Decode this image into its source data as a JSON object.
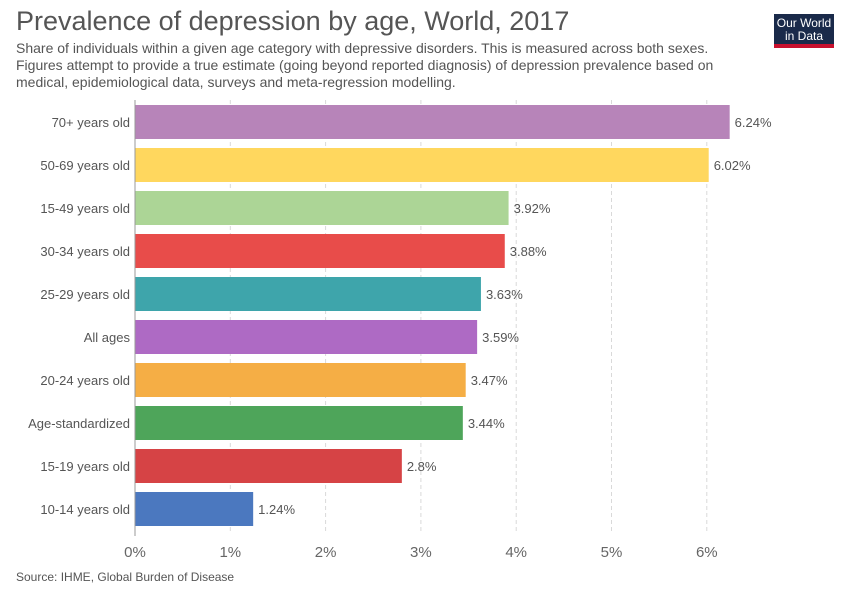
{
  "title": "Prevalence of depression by age, World, 2017",
  "subtitle": "Share of individuals within a given age category with depressive disorders. This is measured across both sexes. Figures attempt to provide a true estimate (going beyond reported diagnosis) of depression prevalence based on medical, epidemiological data, surveys and meta-regression modelling.",
  "logo": {
    "line1": "Our World",
    "line2": "in Data"
  },
  "source": "Source: IHME, Global Burden of Disease",
  "chart_data": {
    "type": "bar",
    "orientation": "horizontal",
    "categories": [
      "70+ years old",
      "50-69 years old",
      "15-49 years old",
      "30-34 years old",
      "25-29 years old",
      "All ages",
      "20-24 years old",
      "Age-standardized",
      "15-19 years old",
      "10-14 years old"
    ],
    "values": [
      6.24,
      6.02,
      3.92,
      3.88,
      3.63,
      3.59,
      3.47,
      3.44,
      2.8,
      1.24
    ],
    "value_labels": [
      "6.24%",
      "6.02%",
      "3.92%",
      "3.88%",
      "3.63%",
      "3.59%",
      "3.47%",
      "3.44%",
      "2.8%",
      "1.24%"
    ],
    "colors": [
      "#b784b9",
      "#ffd75e",
      "#acd596",
      "#e84c4a",
      "#3ea5ab",
      "#ae6ac4",
      "#f5ae45",
      "#4ea55a",
      "#d64345",
      "#4b78bf"
    ],
    "xticks": [
      0,
      1,
      2,
      3,
      4,
      5,
      6
    ],
    "xtick_labels": [
      "0%",
      "1%",
      "2%",
      "3%",
      "4%",
      "5%",
      "6%"
    ],
    "xlim": [
      0,
      6.5
    ],
    "grid": true,
    "title": "Prevalence of depression by age, World, 2017"
  }
}
